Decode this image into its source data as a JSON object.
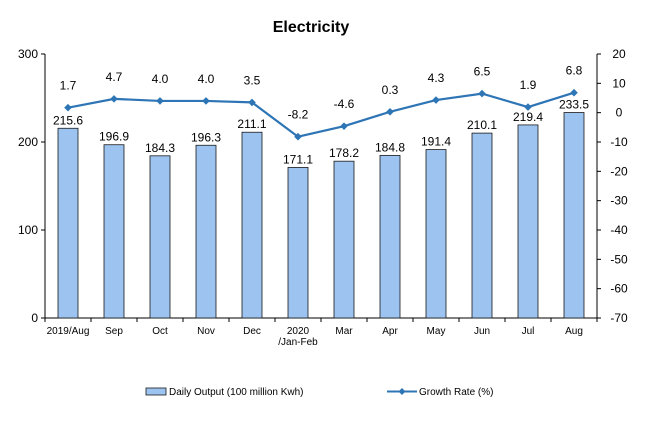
{
  "chart_data": {
    "type": "bar+line",
    "title": "Electricity",
    "categories": [
      "2019/Aug",
      "Sep",
      "Oct",
      "Nov",
      "Dec",
      "2020/Jan-Feb",
      "Mar",
      "Apr",
      "May",
      "Jun",
      "Jul",
      "Aug"
    ],
    "category_lines": [
      [
        "2019/Aug"
      ],
      [
        "Sep"
      ],
      [
        "Oct"
      ],
      [
        "Nov"
      ],
      [
        "Dec"
      ],
      [
        "2020",
        "/Jan-Feb"
      ],
      [
        "Mar"
      ],
      [
        "Apr"
      ],
      [
        "May"
      ],
      [
        "Jun"
      ],
      [
        "Jul"
      ],
      [
        "Aug"
      ]
    ],
    "series": [
      {
        "name": "Daily Output (100 million Kwh)",
        "type": "bar",
        "axis": "left",
        "color": "#9dc3f0",
        "stroke": "#1a1a1a",
        "values": [
          215.6,
          196.9,
          184.3,
          196.3,
          211.1,
          171.1,
          178.2,
          184.8,
          191.4,
          210.1,
          219.4,
          233.5
        ],
        "labels": [
          "215.6",
          "196.9",
          "184.3",
          "196.3",
          "211.1",
          "171.1",
          "178.2",
          "184.8",
          "191.4",
          "210.1",
          "219.4",
          "233.5"
        ]
      },
      {
        "name": "Growth Rate (%)",
        "type": "line",
        "axis": "right",
        "color": "#2e75b6",
        "values": [
          1.7,
          4.7,
          4.0,
          4.0,
          3.5,
          -8.2,
          -4.6,
          0.3,
          4.3,
          6.5,
          1.9,
          6.8
        ],
        "labels": [
          "1.7",
          "4.7",
          "4.0",
          "4.0",
          "3.5",
          "-8.2",
          "-4.6",
          "0.3",
          "4.3",
          "6.5",
          "1.9",
          "6.8"
        ]
      }
    ],
    "y_left": {
      "min": 0,
      "max": 300,
      "ticks": [
        0,
        100,
        200,
        300
      ]
    },
    "y_right": {
      "min": -70,
      "max": 20,
      "ticks": [
        20,
        10,
        0,
        -10,
        -20,
        -30,
        -40,
        -50,
        -60,
        -70
      ]
    },
    "grid": false,
    "legend": "bottom"
  }
}
